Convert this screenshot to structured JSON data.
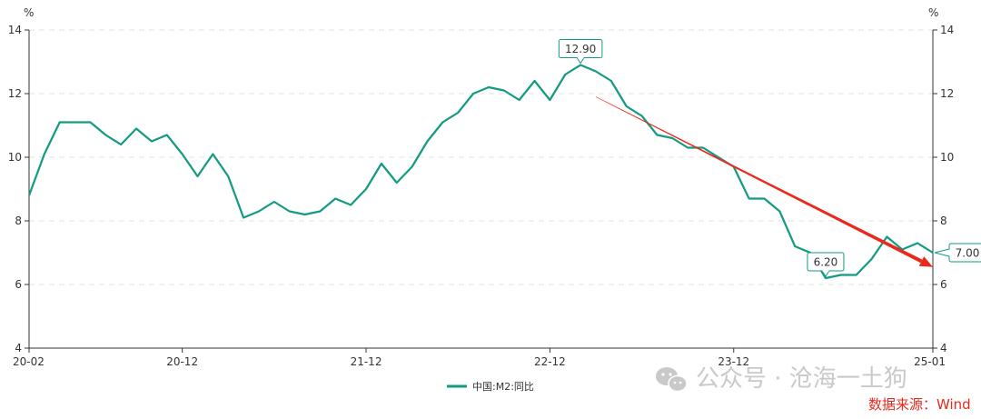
{
  "chart_data": {
    "type": "line",
    "y_unit": "%",
    "ylim": [
      4,
      14
    ],
    "y_ticks": [
      4,
      6,
      8,
      10,
      12,
      14
    ],
    "x_tick_labels": [
      "20-02",
      "20-12",
      "21-12",
      "22-12",
      "23-12",
      "25-01"
    ],
    "x_tick_index": [
      0,
      10,
      22,
      34,
      46,
      59
    ],
    "grid": "horizontal-dashed",
    "legend_position": "bottom-center",
    "series": [
      {
        "name": "中国:M2:同比",
        "color": "#139A82",
        "values": [
          8.8,
          10.1,
          11.1,
          11.1,
          11.1,
          10.7,
          10.4,
          10.9,
          10.5,
          10.7,
          10.1,
          9.4,
          10.1,
          9.4,
          8.1,
          8.3,
          8.6,
          8.3,
          8.2,
          8.3,
          8.7,
          8.5,
          9.0,
          9.8,
          9.2,
          9.7,
          10.5,
          11.1,
          11.4,
          12.0,
          12.2,
          12.1,
          11.8,
          12.4,
          11.8,
          12.6,
          12.9,
          12.7,
          12.4,
          11.6,
          11.3,
          10.7,
          10.6,
          10.3,
          10.3,
          10.0,
          9.7,
          8.7,
          8.7,
          8.3,
          7.2,
          7.0,
          6.2,
          6.3,
          6.3,
          6.8,
          7.5,
          7.1,
          7.3,
          7.0
        ]
      }
    ],
    "callouts": [
      {
        "label": "12.90",
        "index": 36,
        "value": 12.9
      },
      {
        "label": "6.20",
        "index": 52,
        "value": 6.2
      },
      {
        "label": "7.00",
        "index": 59,
        "value": 7.0
      }
    ],
    "trend_arrow": {
      "from_index": 37,
      "from_value": 11.9,
      "to_index": 59,
      "to_value": 6.55,
      "color": "#E8291C"
    }
  },
  "watermark": {
    "text": "公众号 · 沧海一土狗",
    "icon": "wechat-icon"
  },
  "source": {
    "text": "数据来源：Wind",
    "color": "#E8291C"
  }
}
